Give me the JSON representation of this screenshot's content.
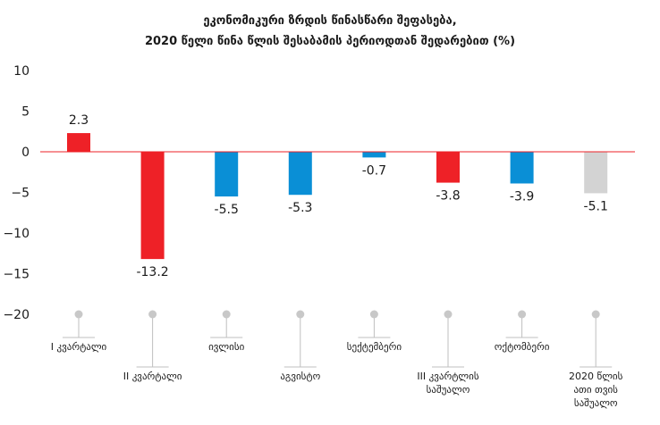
{
  "chart_data": {
    "type": "bar",
    "title": [
      "ეკონომიკური ზრდის წინასწარი შეფასება,",
      "2020 წელი წინა წლის შესაბამის პერიოდთან შედარებით (%)"
    ],
    "categories": [
      [
        "I კვარტალი"
      ],
      [
        "II კვარტალი"
      ],
      [
        "ივლისი"
      ],
      [
        "აგვისტო"
      ],
      [
        "სექტემბერი"
      ],
      [
        "III კვარტლის",
        "საშუალო"
      ],
      [
        "ოქტომბერი"
      ],
      [
        "2020 წლის",
        "ათი თვის",
        "საშუალო"
      ]
    ],
    "values": [
      2.3,
      -13.2,
      -5.5,
      -5.3,
      -0.7,
      -3.8,
      -3.9,
      -5.1
    ],
    "value_labels": [
      "2.3",
      "-13.2",
      "-5.5",
      "-5.3",
      "-0.7",
      "-3.8",
      "-3.9",
      "-5.1"
    ],
    "bar_colors": [
      "#ee2127",
      "#ee2127",
      "#0a8fd6",
      "#0a8fd6",
      "#0a8fd6",
      "#ee2127",
      "#0a8fd6",
      "#d3d3d3"
    ],
    "ylim": [
      -20,
      10
    ],
    "yticks": [
      10,
      5,
      0,
      -5,
      -10,
      -15,
      -20
    ],
    "ytick_labels": [
      "10",
      "5",
      "0",
      "−5",
      "−10",
      "−15",
      "−20"
    ],
    "zero_line_color": "#ee2127",
    "grid": false,
    "legend": "none",
    "xlabel": "",
    "ylabel": ""
  }
}
